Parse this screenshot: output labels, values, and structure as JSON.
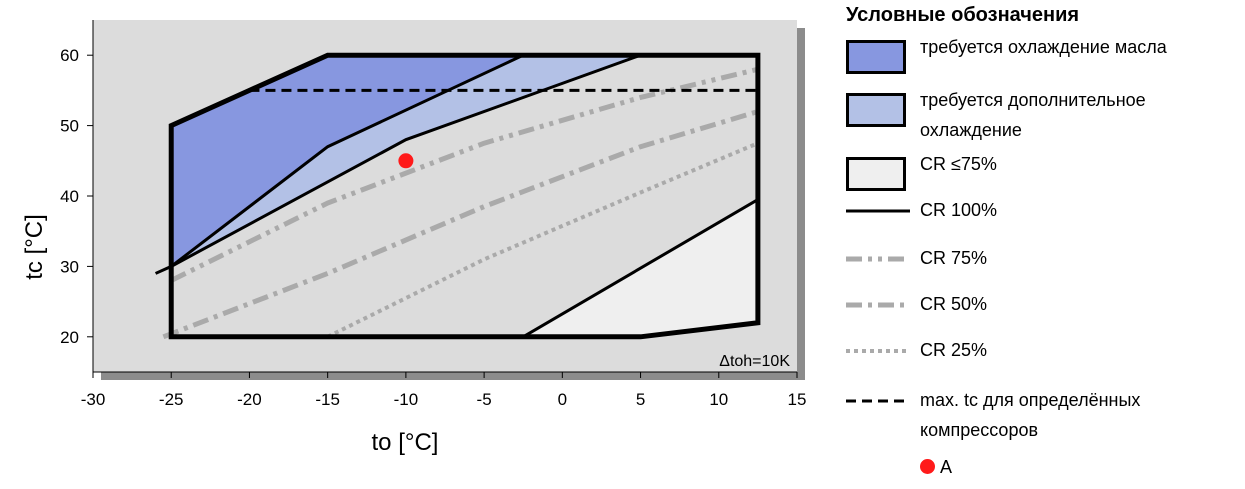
{
  "colors": {
    "plot_background": "#dcdcdc",
    "oil_cooling": "#8797e0",
    "additional_cooling": "#b3c1e6",
    "cr_le_75": "#efefef",
    "cr_lines_gray": "#aaaaaa",
    "point": "#ff1a1a",
    "shadow": "#8c8c8c"
  },
  "chart_data": {
    "type": "area",
    "xlabel": "to [°C]",
    "ylabel": "tc [°C]",
    "xlim": [
      -30,
      15
    ],
    "ylim": [
      15,
      65
    ],
    "xticks": [
      -30,
      -25,
      -20,
      -15,
      -10,
      -5,
      0,
      5,
      10,
      15
    ],
    "yticks": [
      20,
      30,
      40,
      50,
      60
    ],
    "grid": false,
    "legend_placement": "right",
    "annotation": "Δtoh=10K",
    "envelope": {
      "x": [
        -25,
        -25,
        -20,
        -15,
        12.5,
        12.5,
        5,
        -25
      ],
      "y": [
        20,
        50,
        55,
        60,
        60,
        22,
        20,
        20
      ]
    },
    "regions": [
      {
        "name": "требуется охлаждение масла",
        "x": [
          -25,
          -25,
          -20,
          -15,
          -2.5,
          -15,
          -25
        ],
        "y": [
          30,
          50,
          55,
          60,
          60,
          47,
          30
        ]
      },
      {
        "name": "требуется дополнительное охлаждение",
        "x": [
          -25,
          -15,
          -2.5,
          5,
          -10,
          -25
        ],
        "y": [
          30,
          47,
          60,
          60,
          48,
          30
        ]
      },
      {
        "name": "CR ≤75%",
        "x": [
          -2.5,
          12.5,
          12.5,
          5,
          -2.5
        ],
        "y": [
          20,
          39.5,
          22,
          20,
          20
        ]
      }
    ],
    "series": [
      {
        "name": "CR 100%",
        "style": "solid",
        "x": [
          -26,
          -25,
          -15,
          -2.5
        ],
        "y": [
          29,
          30,
          47,
          60
        ]
      },
      {
        "name": "CR 100%",
        "style": "solid",
        "x": [
          -25,
          -10,
          0,
          5
        ],
        "y": [
          30,
          48,
          56,
          60
        ]
      },
      {
        "name": "CR 100%",
        "style": "solid",
        "x": [
          -2.5,
          12.5
        ],
        "y": [
          20,
          39.5
        ]
      },
      {
        "name": "CR 75%",
        "style": "dashdotdot",
        "x": [
          -25,
          -15,
          -5,
          5,
          12.5
        ],
        "y": [
          28,
          39,
          47.5,
          54,
          58
        ]
      },
      {
        "name": "CR 50%",
        "style": "dashdot",
        "x": [
          -25.5,
          -15,
          -5,
          5,
          12.5
        ],
        "y": [
          20,
          29,
          38.5,
          47,
          52
        ]
      },
      {
        "name": "CR 25%",
        "style": "dotted",
        "x": [
          -15,
          -5,
          5,
          12.5
        ],
        "y": [
          20,
          31,
          40.5,
          47.5
        ]
      },
      {
        "name": "max. tc для определённых компрессоров",
        "style": "dashed",
        "x": [
          -20,
          12.5
        ],
        "y": [
          55,
          55
        ]
      }
    ],
    "points": [
      {
        "name": "A",
        "x": -10,
        "y": 45
      }
    ]
  },
  "legend": {
    "title": "Условные обозначения",
    "items": [
      {
        "kind": "swatch",
        "color_key": "oil_cooling",
        "label": "требуется охлаждение масла",
        "label2": ""
      },
      {
        "kind": "swatch",
        "color_key": "additional_cooling",
        "label": "требуется дополнительное",
        "label2": "охлаждение"
      },
      {
        "kind": "swatch",
        "color_key": "cr_le_75",
        "label": "CR ≤75%",
        "label2": ""
      },
      {
        "kind": "line",
        "style": "solid",
        "label": "CR 100%",
        "label2": ""
      },
      {
        "kind": "line",
        "style": "dashdotdot",
        "label": "CR 75%",
        "label2": ""
      },
      {
        "kind": "line",
        "style": "dashdot",
        "label": "CR 50%",
        "label2": ""
      },
      {
        "kind": "line",
        "style": "dotted",
        "label": "CR 25%",
        "label2": ""
      },
      {
        "kind": "line",
        "style": "dashed",
        "label": "max. tc для определённых",
        "label2": "компрессоров"
      },
      {
        "kind": "point",
        "label": "A",
        "label2": ""
      }
    ]
  }
}
